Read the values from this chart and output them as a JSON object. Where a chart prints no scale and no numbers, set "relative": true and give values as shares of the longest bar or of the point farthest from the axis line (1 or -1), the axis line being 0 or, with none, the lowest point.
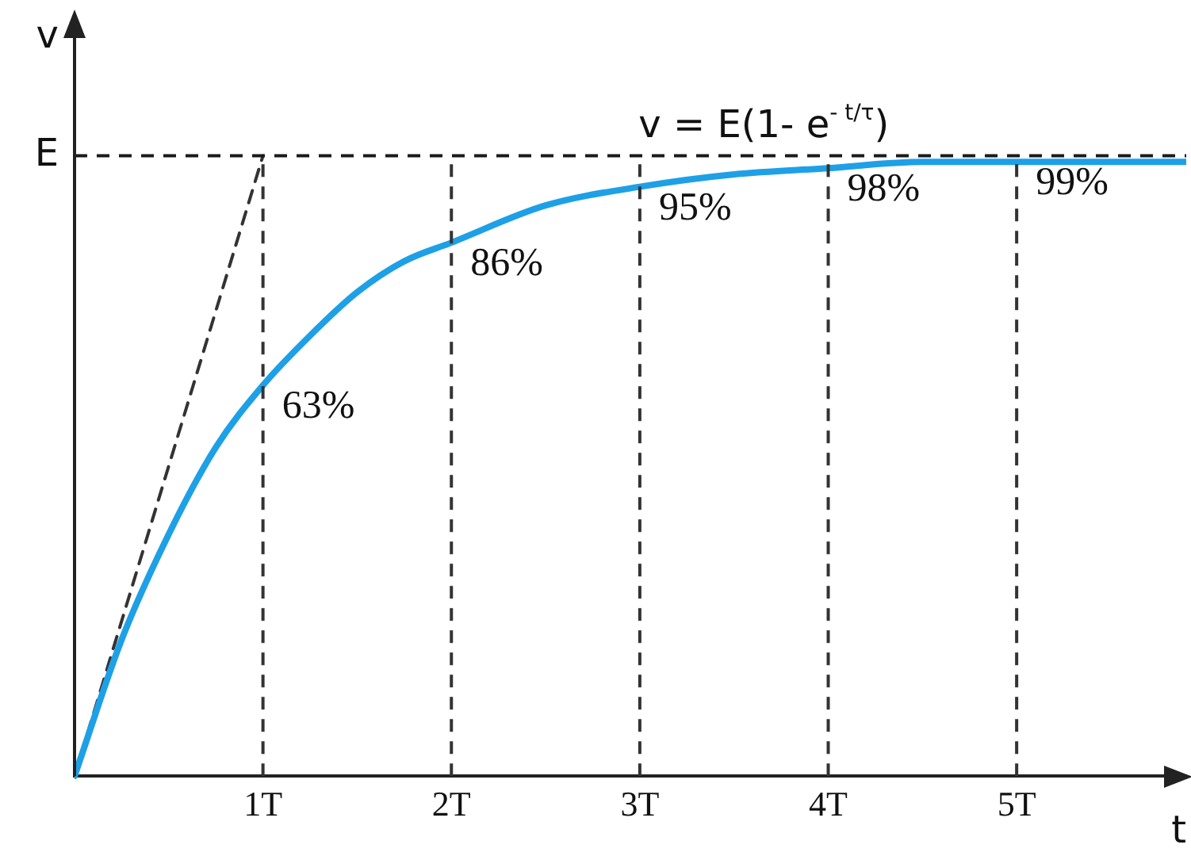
{
  "chart_data": {
    "type": "line",
    "relative": true,
    "xlabel": "t",
    "ylabel": "v",
    "xlim": [
      0,
      5.9
    ],
    "xticks": [
      {
        "value": 1,
        "label": "1T"
      },
      {
        "value": 2,
        "label": "2T"
      },
      {
        "value": 3,
        "label": "3T"
      },
      {
        "value": 4,
        "label": "4T"
      },
      {
        "value": 5,
        "label": "5T"
      }
    ],
    "grid": false,
    "legend": false,
    "series": [
      {
        "color": "#1ea0e6",
        "marker": "none",
        "line_style": "solid",
        "x": [
          0,
          0.25,
          0.5,
          0.75,
          1,
          1.25,
          1.5,
          1.75,
          2,
          2.5,
          3,
          3.5,
          4,
          4.5,
          5,
          5.5,
          5.9
        ],
        "values": [
          0,
          0.22,
          0.39,
          0.53,
          0.63,
          0.71,
          0.78,
          0.83,
          0.86,
          0.92,
          0.95,
          0.97,
          0.98,
          0.99,
          0.99,
          0.99,
          0.99
        ]
      },
      {
        "type": "line",
        "color": "#333333",
        "marker": "none",
        "line_style": "dashed",
        "x": [
          0,
          1
        ],
        "values": [
          0,
          1
        ]
      }
    ],
    "ref_lines": [
      {
        "axis": "y",
        "value": 1,
        "label": "E",
        "line_style": "dashed",
        "color": "#1a1a1a"
      },
      {
        "axis": "x",
        "value": 1,
        "line_style": "dashed",
        "color": "#333333"
      },
      {
        "axis": "x",
        "value": 2,
        "line_style": "dashed",
        "color": "#333333"
      },
      {
        "axis": "x",
        "value": 3,
        "line_style": "dashed",
        "color": "#333333"
      },
      {
        "axis": "x",
        "value": 4,
        "line_style": "dashed",
        "color": "#333333"
      },
      {
        "axis": "x",
        "value": 5,
        "line_style": "dashed",
        "color": "#333333"
      }
    ],
    "annotations": [
      "v = E(1- e$^{- t/τ}$)",
      {
        "text": "63%",
        "x": 1,
        "y": 0.63
      },
      {
        "text": "86%",
        "x": 2,
        "y": 0.86
      },
      {
        "text": "95%",
        "x": 3,
        "y": 0.95
      },
      {
        "text": "98%",
        "x": 4,
        "y": 0.98
      },
      {
        "text": "99%",
        "x": 5,
        "y": 0.99
      }
    ]
  }
}
